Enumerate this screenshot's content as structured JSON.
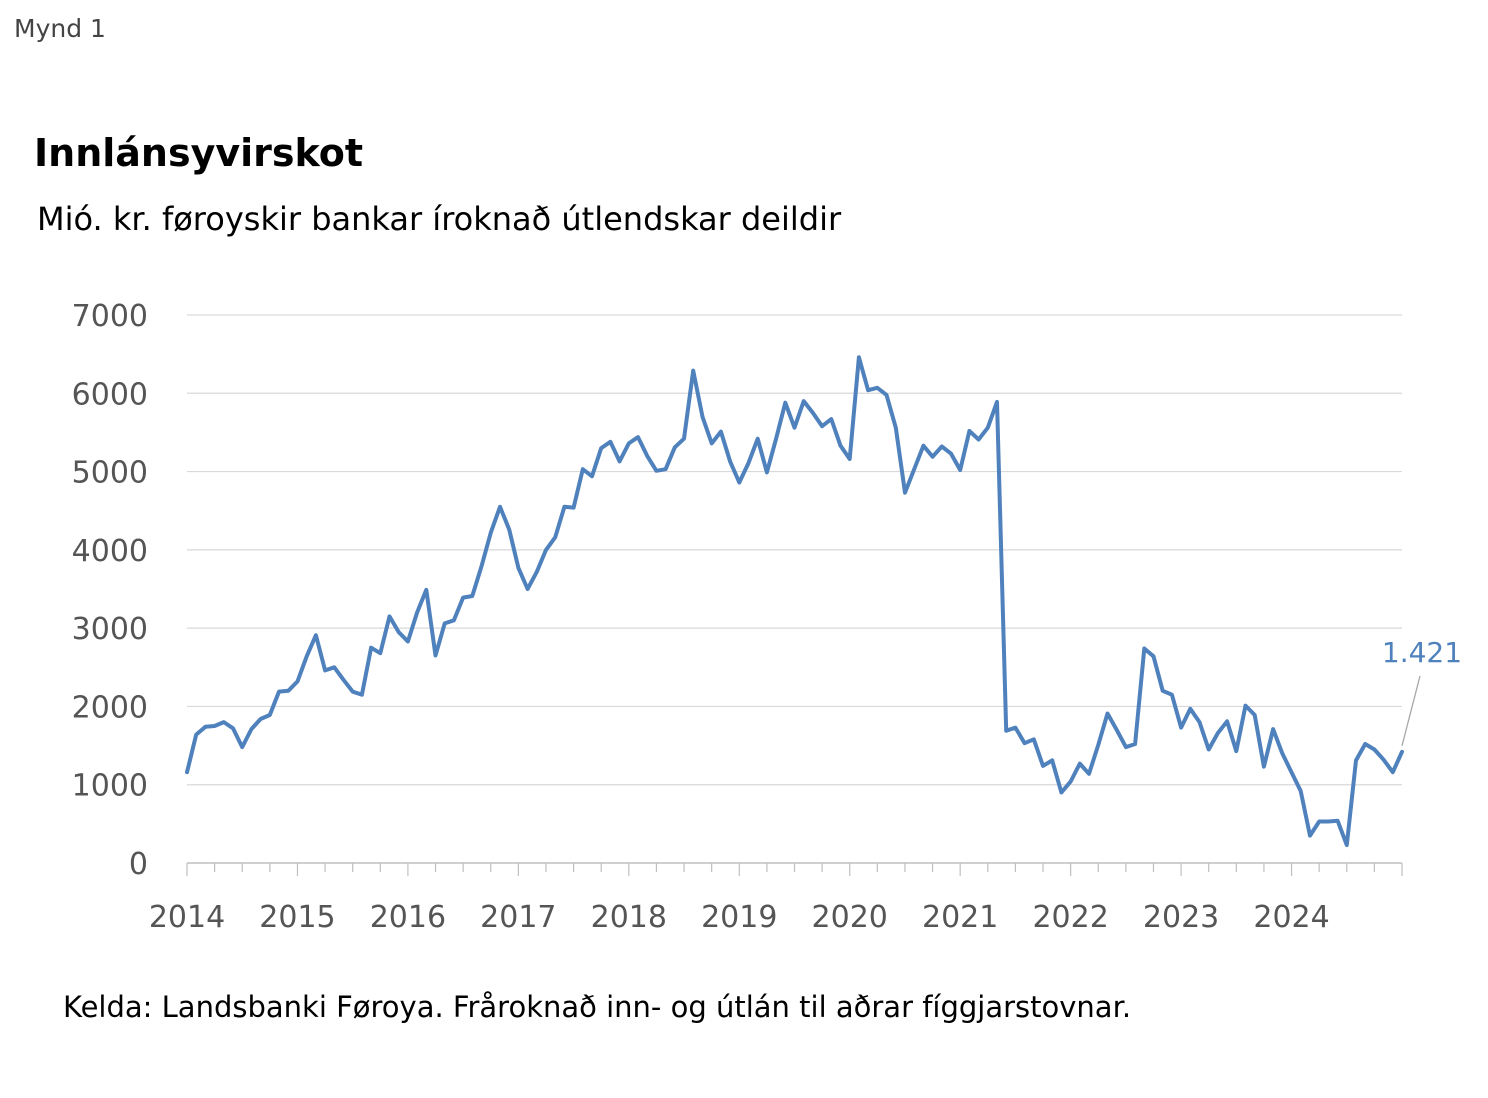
{
  "figure_label": "Mynd 1",
  "source": "Kelda: Landsbanki Føroya. Fråroknað inn- og útlán til aðrar fíggjarstovnar.",
  "colors": {
    "line": "#4f81bd",
    "grid": "#d9d9d9",
    "axis": "#bfbfbf",
    "tick_text": "#555555"
  },
  "chart_data": {
    "type": "line",
    "title": "Innlánsyvirskot",
    "subtitle": "Mió. kr. føroyskir bankar íroknað útlendskar deildir",
    "xlabel": "",
    "ylabel": "",
    "ylim": [
      0,
      7000
    ],
    "yticks": [
      "0",
      "1000",
      "2000",
      "3000",
      "4000",
      "5000",
      "6000",
      "7000"
    ],
    "xlim": [
      2014.0,
      2025.0
    ],
    "xticks": [
      "2014",
      "2015",
      "2016",
      "2017",
      "2018",
      "2019",
      "2020",
      "2021",
      "2022",
      "2023",
      "2024"
    ],
    "grid": true,
    "last_label": "1.421",
    "series": [
      {
        "values": [
          1160,
          1640,
          1740,
          1750,
          1800,
          1720,
          1480,
          1710,
          1840,
          1890,
          2190,
          2200,
          2320,
          2640,
          2910,
          2460,
          2500,
          2340,
          2190,
          2150,
          2750,
          2680,
          3150,
          2950,
          2830,
          3200,
          3490,
          2650,
          3060,
          3100,
          3390,
          3410,
          3790,
          4220,
          4550,
          4260,
          3770,
          3500,
          3720,
          4000,
          4160,
          4550,
          4540,
          5030,
          4940,
          5300,
          5380,
          5130,
          5360,
          5440,
          5200,
          5010,
          5030,
          5310,
          5420,
          6290,
          5700,
          5360,
          5510,
          5130,
          4860,
          5110,
          5420,
          4990,
          5420,
          5880,
          5560,
          5900,
          5750,
          5580,
          5670,
          5330,
          5160,
          6460,
          6040,
          6070,
          5980,
          5560,
          4730,
          5030,
          5330,
          5190,
          5320,
          5230,
          5020,
          5520,
          5410,
          5560,
          5890,
          1690,
          1730,
          1530,
          1580,
          1240,
          1310,
          900,
          1040,
          1270,
          1140,
          1510,
          1910,
          1700,
          1480,
          1520,
          2740,
          2640,
          2200,
          2150,
          1730,
          1970,
          1800,
          1450,
          1660,
          1810,
          1430,
          2010,
          1890,
          1230,
          1710,
          1400,
          1160,
          920,
          350,
          530,
          530,
          540,
          230,
          1310,
          1520,
          1450,
          1320,
          1160,
          1421
        ]
      }
    ]
  }
}
